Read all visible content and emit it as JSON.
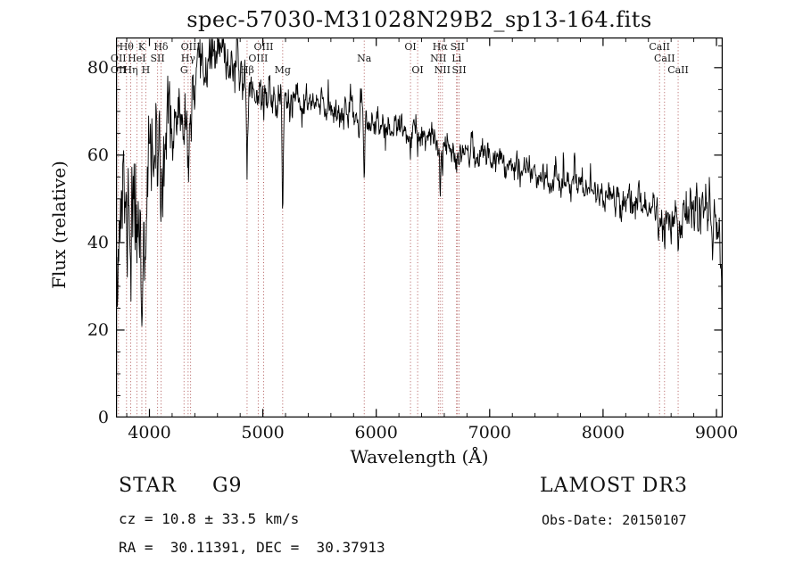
{
  "annotations": {
    "object_type": "STAR     G9",
    "survey": "LAMOST DR3",
    "cz": "cz = 10.8 ± 33.5 km/s",
    "obs_date": "Obs-Date: 20150107",
    "ra_dec": "RA =  30.11391, DEC =  30.37913"
  },
  "chart_data": {
    "type": "line",
    "title": "spec-57030-M31028N29B2_sp13-164.fits",
    "xlabel": "Wavelength (Å)",
    "ylabel": "Flux (relative)",
    "x_ticks": [
      4000,
      5000,
      6000,
      7000,
      8000,
      9000
    ],
    "y_ticks": [
      0,
      20,
      40,
      60,
      80
    ],
    "x_range": [
      3705,
      9055
    ],
    "y_range": [
      0,
      86.9
    ],
    "x_minor_step": 200,
    "y_minor_step": 5,
    "grid": false,
    "line_color": "#000000",
    "marker_line_color": "#a84848",
    "line_markers": [
      {
        "label": "Hθ",
        "wavelength": 3798,
        "row": 1
      },
      {
        "label": "K",
        "wavelength": 3933,
        "row": 1
      },
      {
        "label": "Hδ",
        "wavelength": 4102,
        "row": 1
      },
      {
        "label": "OIII",
        "wavelength": 4363,
        "row": 1
      },
      {
        "label": "OIII",
        "wavelength": 5007,
        "row": 1
      },
      {
        "label": "OI",
        "wavelength": 6302,
        "row": 1
      },
      {
        "label": "Hα",
        "wavelength": 6563,
        "row": 1
      },
      {
        "label": "SII",
        "wavelength": 6716,
        "row": 1
      },
      {
        "label": "CaII",
        "wavelength": 8498,
        "row": 1
      },
      {
        "label": "OII",
        "wavelength": 3727,
        "row": 2
      },
      {
        "label": "HeI",
        "wavelength": 3889,
        "row": 2
      },
      {
        "label": "SII",
        "wavelength": 4072,
        "row": 2
      },
      {
        "label": "Hγ",
        "wavelength": 4341,
        "row": 2
      },
      {
        "label": "OIII",
        "wavelength": 4959,
        "row": 2
      },
      {
        "label": "Na",
        "wavelength": 5894,
        "row": 2
      },
      {
        "label": "NII",
        "wavelength": 6548,
        "row": 2
      },
      {
        "label": "Li",
        "wavelength": 6708,
        "row": 2
      },
      {
        "label": "CaII",
        "wavelength": 8542,
        "row": 2
      },
      {
        "label": "OII",
        "wavelength": 3727,
        "row": 3
      },
      {
        "label": "Hη",
        "wavelength": 3835,
        "row": 3
      },
      {
        "label": "H",
        "wavelength": 3968,
        "row": 3
      },
      {
        "label": "G",
        "wavelength": 4305,
        "row": 3
      },
      {
        "label": "Hβ",
        "wavelength": 4861,
        "row": 3
      },
      {
        "label": "Mg",
        "wavelength": 5175,
        "row": 3
      },
      {
        "label": "OI",
        "wavelength": 6365,
        "row": 3
      },
      {
        "label": "NII",
        "wavelength": 6583,
        "row": 3
      },
      {
        "label": "SII",
        "wavelength": 6731,
        "row": 3
      },
      {
        "label": "CaII",
        "wavelength": 8662,
        "row": 3
      }
    ],
    "spectrum_model": {
      "step": 4,
      "seed": 11,
      "noise_ar": 0.45,
      "continuum": [
        [
          3705,
          44
        ],
        [
          3760,
          50
        ],
        [
          3820,
          52
        ],
        [
          3880,
          50
        ],
        [
          3940,
          48
        ],
        [
          4000,
          58
        ],
        [
          4060,
          62
        ],
        [
          4120,
          63
        ],
        [
          4180,
          67
        ],
        [
          4240,
          68
        ],
        [
          4300,
          68
        ],
        [
          4360,
          70
        ],
        [
          4420,
          75
        ],
        [
          4470,
          79
        ],
        [
          4520,
          82
        ],
        [
          4570,
          83
        ],
        [
          4620,
          84
        ],
        [
          4670,
          82
        ],
        [
          4720,
          81
        ],
        [
          4770,
          80
        ],
        [
          4820,
          78
        ],
        [
          4870,
          76
        ],
        [
          4920,
          75
        ],
        [
          4980,
          74
        ],
        [
          5040,
          74
        ],
        [
          5100,
          73
        ],
        [
          5160,
          72
        ],
        [
          5220,
          72
        ],
        [
          5300,
          71
        ],
        [
          5400,
          72
        ],
        [
          5500,
          71
        ],
        [
          5600,
          71
        ],
        [
          5700,
          70
        ],
        [
          5800,
          69
        ],
        [
          5900,
          68
        ],
        [
          6000,
          67
        ],
        [
          6100,
          66
        ],
        [
          6200,
          66
        ],
        [
          6300,
          65
        ],
        [
          6400,
          64
        ],
        [
          6500,
          63
        ],
        [
          6600,
          62
        ],
        [
          6700,
          62
        ],
        [
          6800,
          61
        ],
        [
          6900,
          60
        ],
        [
          7000,
          60
        ],
        [
          7100,
          59
        ],
        [
          7200,
          58
        ],
        [
          7300,
          57
        ],
        [
          7400,
          56
        ],
        [
          7500,
          55
        ],
        [
          7600,
          54
        ],
        [
          7700,
          54
        ],
        [
          7800,
          53
        ],
        [
          7900,
          52
        ],
        [
          8000,
          51
        ],
        [
          8100,
          50
        ],
        [
          8200,
          50
        ],
        [
          8300,
          49
        ],
        [
          8400,
          48
        ],
        [
          8500,
          47
        ],
        [
          8600,
          46
        ],
        [
          8700,
          46
        ],
        [
          8800,
          46
        ],
        [
          8900,
          46
        ],
        [
          8950,
          45
        ],
        [
          9000,
          45
        ],
        [
          9030,
          44
        ],
        [
          9045,
          30
        ],
        [
          9052,
          8
        ],
        [
          9055,
          4
        ]
      ],
      "absorption_features": [
        [
          3727,
          6,
          5
        ],
        [
          3798,
          14,
          6
        ],
        [
          3835,
          15,
          6
        ],
        [
          3889,
          14,
          6
        ],
        [
          3933,
          24,
          7
        ],
        [
          3968,
          20,
          7
        ],
        [
          4072,
          8,
          5
        ],
        [
          4102,
          16,
          6
        ],
        [
          4305,
          10,
          8
        ],
        [
          4341,
          13,
          6
        ],
        [
          4363,
          5,
          4
        ],
        [
          4861,
          21,
          5
        ],
        [
          4959,
          3,
          4
        ],
        [
          5007,
          3,
          4
        ],
        [
          5175,
          24,
          5
        ],
        [
          5894,
          14,
          5
        ],
        [
          6302,
          4,
          4
        ],
        [
          6365,
          3,
          4
        ],
        [
          6548,
          3,
          4
        ],
        [
          6563,
          9,
          5
        ],
        [
          6583,
          3,
          4
        ],
        [
          6708,
          2,
          4
        ],
        [
          6716,
          3,
          4
        ],
        [
          6731,
          3,
          4
        ],
        [
          8498,
          6,
          6
        ],
        [
          8542,
          7,
          6
        ],
        [
          8662,
          7,
          6
        ]
      ],
      "emission_spikes": [
        [
          4430,
          4,
          5
        ],
        [
          4570,
          3,
          4
        ],
        [
          5577,
          3,
          3
        ],
        [
          6840,
          4,
          3
        ],
        [
          7090,
          5,
          3
        ],
        [
          7240,
          4,
          3
        ],
        [
          7470,
          5,
          3
        ],
        [
          7650,
          5,
          3
        ],
        [
          7750,
          8,
          4
        ],
        [
          7890,
          5,
          3
        ],
        [
          8250,
          4,
          3
        ],
        [
          8430,
          3,
          3
        ],
        [
          8770,
          4,
          3
        ],
        [
          8825,
          8,
          3
        ],
        [
          8940,
          6,
          3
        ]
      ],
      "noise_sigma": [
        [
          3705,
          7
        ],
        [
          3800,
          7
        ],
        [
          3900,
          6.5
        ],
        [
          4000,
          5.5
        ],
        [
          4100,
          5
        ],
        [
          4200,
          4
        ],
        [
          4300,
          3.5
        ],
        [
          4400,
          3
        ],
        [
          4500,
          2.6
        ],
        [
          4700,
          2.4
        ],
        [
          5000,
          2.2
        ],
        [
          5500,
          1.8
        ],
        [
          6000,
          1.6
        ],
        [
          6500,
          1.5
        ],
        [
          7000,
          1.5
        ],
        [
          7500,
          1.6
        ],
        [
          8000,
          1.7
        ],
        [
          8500,
          2.2
        ],
        [
          8800,
          2.6
        ],
        [
          9000,
          2.8
        ],
        [
          9055,
          2
        ]
      ]
    }
  }
}
